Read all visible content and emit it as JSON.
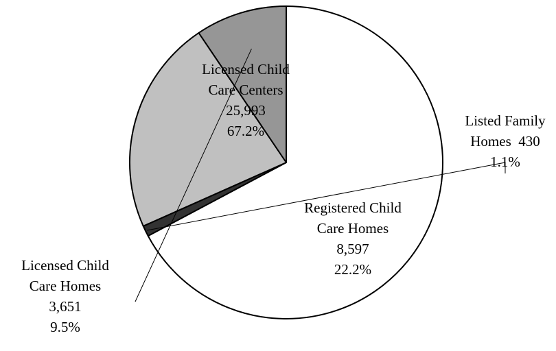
{
  "chart_data": {
    "type": "pie",
    "start_angle_deg": 0,
    "direction": "clockwise",
    "slices": [
      {
        "label": [
          "Licensed Child",
          "Care Centers"
        ],
        "value": 25993,
        "value_text": "25,993",
        "percent": 67.2,
        "percent_text": "67.2%",
        "color": "#ffffff"
      },
      {
        "label": [
          "Listed Family",
          "Homes"
        ],
        "value": 430,
        "value_text": "430",
        "percent": 1.1,
        "percent_text": "1.1%",
        "color": "#333333"
      },
      {
        "label": [
          "Registered Child",
          "Care Homes"
        ],
        "value": 8597,
        "value_text": "8,597",
        "percent": 22.2,
        "percent_text": "22.2%",
        "color": "#c0c0c0"
      },
      {
        "label": [
          "Licensed Child",
          "Care Homes"
        ],
        "value": 3651,
        "value_text": "3,651",
        "percent": 9.5,
        "percent_text": "9.5%",
        "color": "#969696"
      }
    ],
    "stroke_color": "#000000",
    "legend": "none"
  }
}
